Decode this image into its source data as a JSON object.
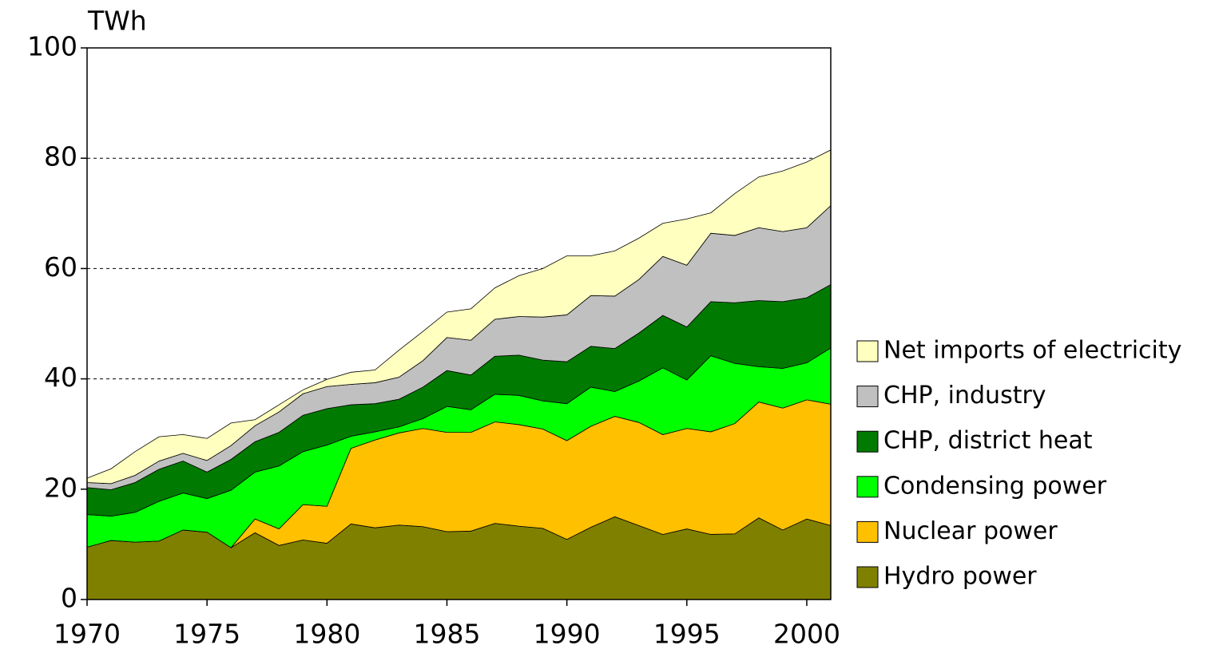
{
  "chart_data": {
    "type": "stacked_area",
    "y_label": "TWh",
    "x": [
      1970,
      1971,
      1972,
      1973,
      1974,
      1975,
      1976,
      1977,
      1978,
      1979,
      1980,
      1981,
      1982,
      1983,
      1984,
      1985,
      1986,
      1987,
      1988,
      1989,
      1990,
      1991,
      1992,
      1993,
      1994,
      1995,
      1996,
      1997,
      1998,
      1999,
      2000,
      2001
    ],
    "series": [
      {
        "name": "Hydro power",
        "color": "#808000",
        "values": [
          9.5,
          10.7,
          10.4,
          10.6,
          12.6,
          12.2,
          9.4,
          12.1,
          9.8,
          10.8,
          10.2,
          13.7,
          13.0,
          13.5,
          13.2,
          12.3,
          12.4,
          13.8,
          13.3,
          12.9,
          10.9,
          13.1,
          15.0,
          13.4,
          11.8,
          12.8,
          11.8,
          11.9,
          14.8,
          12.6,
          14.6,
          13.4
        ]
      },
      {
        "name": "Nuclear power",
        "color": "#ffc000",
        "values": [
          0,
          0,
          0,
          0,
          0,
          0,
          0,
          2.5,
          3.0,
          6.4,
          6.7,
          13.7,
          15.9,
          16.7,
          17.8,
          18.0,
          17.9,
          18.4,
          18.4,
          18.0,
          17.9,
          18.3,
          18.2,
          18.7,
          18.1,
          18.2,
          18.6,
          20.0,
          21.0,
          22.1,
          21.6,
          22.0
        ]
      },
      {
        "name": "Condensing power",
        "color": "#00ff00",
        "values": [
          5.9,
          4.4,
          5.4,
          7.2,
          6.7,
          6.1,
          10.4,
          8.5,
          11.4,
          9.6,
          11.1,
          2.2,
          1.5,
          1.1,
          1.8,
          4.7,
          4.1,
          5.0,
          5.3,
          5.1,
          6.7,
          7.1,
          4.5,
          7.5,
          12.1,
          8.8,
          13.8,
          10.9,
          6.4,
          7.2,
          6.7,
          10.2
        ]
      },
      {
        "name": "CHP, district heat",
        "color": "#007a00",
        "values": [
          4.9,
          4.8,
          5.4,
          5.8,
          5.8,
          4.8,
          5.6,
          5.5,
          6.1,
          6.6,
          6.6,
          5.7,
          5.1,
          5.0,
          5.7,
          6.5,
          6.3,
          6.9,
          7.3,
          7.4,
          7.6,
          7.4,
          7.8,
          8.7,
          9.5,
          9.6,
          9.8,
          11.0,
          12.0,
          12.1,
          11.8,
          11.5
        ]
      },
      {
        "name": "CHP, industry",
        "color": "#c0c0c0",
        "values": [
          0.9,
          1.1,
          1.3,
          1.5,
          1.4,
          2.1,
          2.5,
          2.9,
          3.7,
          3.9,
          4.0,
          3.7,
          3.8,
          4.0,
          4.8,
          6.0,
          6.3,
          6.7,
          7.0,
          7.8,
          8.5,
          9.2,
          9.5,
          9.7,
          10.7,
          11.2,
          12.4,
          12.2,
          13.2,
          12.7,
          12.7,
          14.3
        ]
      },
      {
        "name": "Net imports of electricity",
        "color": "#ffffc0",
        "values": [
          0.8,
          2.7,
          4.3,
          4.4,
          3.4,
          4.0,
          4.1,
          1.1,
          1.3,
          0.7,
          1.3,
          2.2,
          2.3,
          4.9,
          5.3,
          4.6,
          5.7,
          5.7,
          7.4,
          8.8,
          10.7,
          7.2,
          8.2,
          7.5,
          6.0,
          8.4,
          3.7,
          7.6,
          9.2,
          11.0,
          11.9,
          10.1
        ]
      }
    ],
    "xlim": [
      1970,
      2001
    ],
    "xticks": [
      1970,
      1975,
      1980,
      1985,
      1990,
      1995,
      2000
    ],
    "ylim": [
      0,
      100
    ],
    "yticks": [
      0,
      20,
      40,
      60,
      80,
      100
    ],
    "grid": true,
    "legend": "right"
  }
}
